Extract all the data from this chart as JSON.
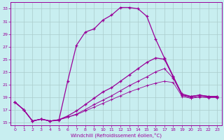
{
  "xlabel": "Windchill (Refroidissement éolien,°C)",
  "ylabel": "",
  "xlim": [
    -0.5,
    23.5
  ],
  "ylim": [
    14.5,
    34
  ],
  "xticks": [
    0,
    1,
    2,
    3,
    4,
    5,
    6,
    7,
    8,
    9,
    10,
    11,
    12,
    13,
    14,
    15,
    16,
    17,
    18,
    19,
    20,
    21,
    22,
    23
  ],
  "yticks": [
    15,
    17,
    19,
    21,
    23,
    25,
    27,
    29,
    31,
    33
  ],
  "bg_color": "#c8eef0",
  "line_color": "#990099",
  "grid_color": "#aacccc",
  "curve1_x": [
    0,
    1,
    2,
    3,
    4,
    5,
    6,
    7,
    8,
    9,
    10,
    11,
    12,
    13,
    14,
    15,
    16,
    17,
    18,
    19,
    20,
    21,
    22,
    23
  ],
  "curve1_y": [
    18.2,
    17.0,
    15.2,
    15.5,
    15.2,
    15.3,
    21.5,
    27.2,
    29.3,
    29.8,
    31.2,
    32.0,
    33.2,
    33.2,
    33.0,
    31.8,
    28.2,
    25.2,
    22.3,
    19.3,
    19.1,
    19.3,
    19.1,
    19.1
  ],
  "curve2_x": [
    0,
    1,
    2,
    3,
    4,
    5,
    6,
    7,
    8,
    9,
    10,
    11,
    12,
    13,
    14,
    15,
    16,
    17,
    18,
    19,
    20,
    21,
    22,
    23
  ],
  "curve2_y": [
    18.2,
    17.0,
    15.2,
    15.5,
    15.2,
    15.4,
    16.0,
    16.8,
    17.8,
    18.8,
    19.8,
    20.5,
    21.5,
    22.5,
    23.5,
    24.5,
    25.2,
    25.0,
    22.2,
    19.5,
    19.1,
    19.3,
    19.1,
    19.1
  ],
  "curve3_x": [
    0,
    1,
    2,
    3,
    4,
    5,
    6,
    7,
    8,
    9,
    10,
    11,
    12,
    13,
    14,
    15,
    16,
    17,
    18,
    19,
    20,
    21,
    22,
    23
  ],
  "curve3_y": [
    18.2,
    17.0,
    15.2,
    15.5,
    15.2,
    15.4,
    15.8,
    16.3,
    17.0,
    17.8,
    18.5,
    19.2,
    20.0,
    20.8,
    21.5,
    22.2,
    23.0,
    23.5,
    22.0,
    19.3,
    18.9,
    19.1,
    19.0,
    19.0
  ],
  "curve4_x": [
    0,
    1,
    2,
    3,
    4,
    5,
    6,
    7,
    8,
    9,
    10,
    11,
    12,
    13,
    14,
    15,
    16,
    17,
    18,
    19,
    20,
    21,
    22,
    23
  ],
  "curve4_y": [
    18.2,
    17.0,
    15.2,
    15.5,
    15.2,
    15.4,
    15.8,
    16.2,
    16.8,
    17.4,
    18.0,
    18.6,
    19.2,
    19.8,
    20.3,
    20.8,
    21.2,
    21.5,
    21.3,
    19.1,
    18.8,
    19.0,
    18.9,
    18.9
  ]
}
